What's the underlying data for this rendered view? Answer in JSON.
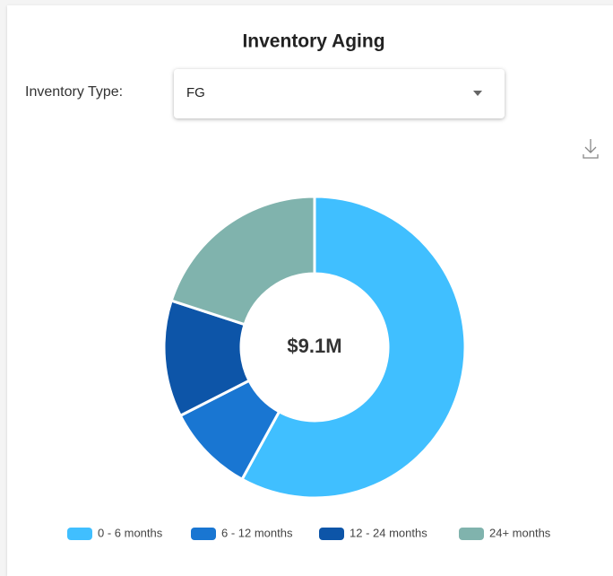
{
  "filter": {
    "label": "Inventory Type:",
    "value": "FG"
  },
  "chart_data": {
    "type": "donut",
    "title": "Inventory Aging",
    "center_label": "$9.1M",
    "categories": [
      "0 - 6 months",
      "6 - 12 months",
      "12 - 24 months",
      "24+ months"
    ],
    "values": [
      58,
      9.5,
      12.5,
      20
    ],
    "colors": [
      "#40bfff",
      "#1976d2",
      "#0d55a8",
      "#80b3ad"
    ],
    "legend": "bottom"
  }
}
